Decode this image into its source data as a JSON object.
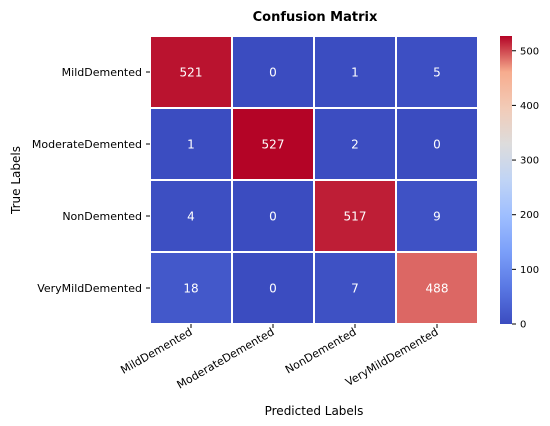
{
  "chart_data": {
    "type": "heatmap",
    "title": "Confusion Matrix",
    "xlabel": "Predicted Labels",
    "ylabel": "True Labels",
    "x_categories": [
      "MildDemented",
      "ModerateDemented",
      "NonDemented",
      "VeryMildDemented"
    ],
    "y_categories": [
      "MildDemented",
      "ModerateDemented",
      "NonDemented",
      "VeryMildDemented"
    ],
    "values": [
      [
        521,
        0,
        1,
        5
      ],
      [
        1,
        527,
        2,
        0
      ],
      [
        4,
        0,
        517,
        9
      ],
      [
        18,
        0,
        7,
        488
      ]
    ],
    "colormap": "coolwarm",
    "colorbar": {
      "range": [
        0,
        527
      ],
      "ticks": [
        0,
        100,
        200,
        300,
        400,
        500
      ]
    },
    "grid": false,
    "legend": "colorbar-right"
  }
}
